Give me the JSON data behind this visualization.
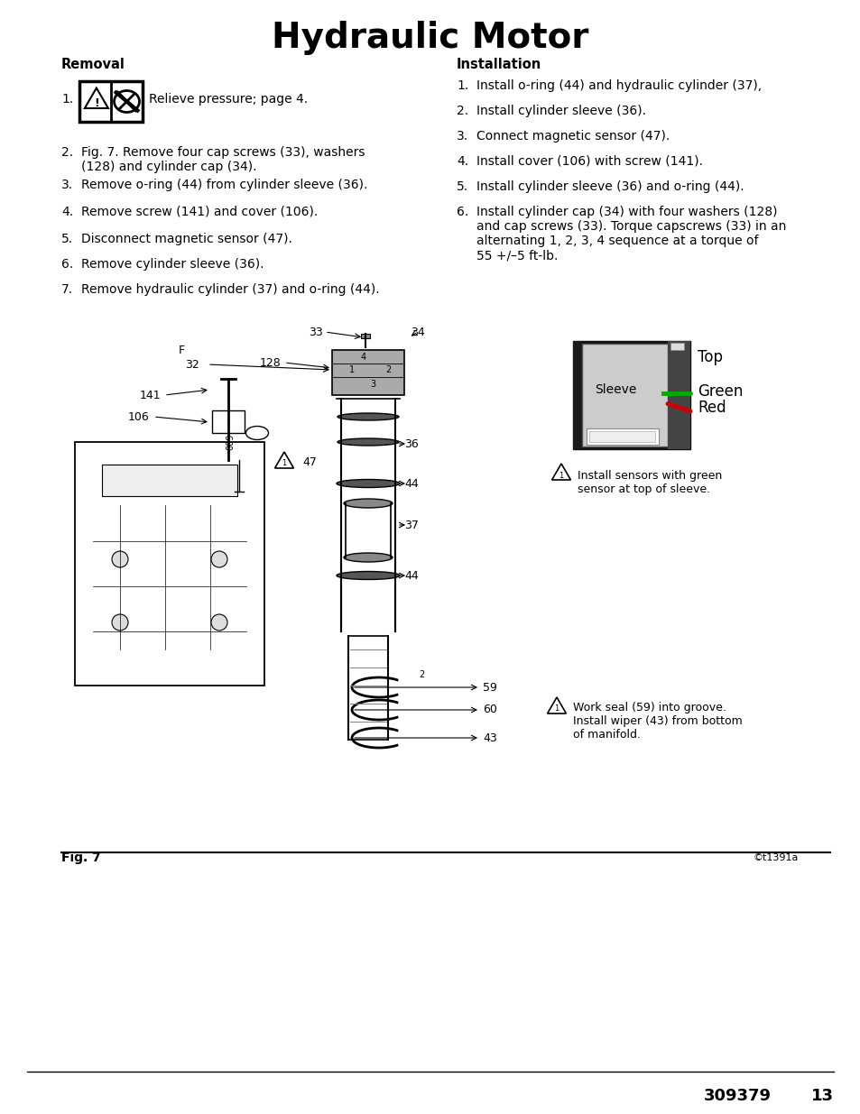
{
  "title": "Hydraulic Motor",
  "background_color": "#ffffff",
  "text_color": "#000000",
  "removal_header": "Removal",
  "installation_header": "Installation",
  "removal_step1_text": "Relieve pressure; page 4.",
  "removal_steps": [
    "Fig. 7. Remove four cap screws (33), washers\n(128) and cylinder cap (34).",
    "Remove o-ring (44) from cylinder sleeve (36).",
    "Remove screw (141) and cover (106).",
    "Disconnect magnetic sensor (47).",
    "Remove cylinder sleeve (36).",
    "Remove hydraulic cylinder (37) and o-ring (44)."
  ],
  "installation_steps": [
    "Install o-ring (44) and hydraulic cylinder (37),",
    "Install cylinder sleeve (36).",
    "Connect magnetic sensor (47).",
    "Install cover (106) with screw (141).",
    "Install cylinder sleeve (36) and o-ring (44).",
    "Install cylinder cap (34) with four washers (128)\nand cap screws (33). Torque capscrews (33) in an\nalternating 1, 2, 3, 4 sequence at a torque of\n55 +/–5 ft-lb."
  ],
  "fig_label": "Fig. 7",
  "fig_note": "©t1391a",
  "doc_number": "309379",
  "page_number": "13",
  "sensor_note": "Install sensors with green\nsensor at top of sleeve.",
  "bottom_note": "Work seal (59) into groove.\nInstall wiper (43) from bottom\nof manifold."
}
